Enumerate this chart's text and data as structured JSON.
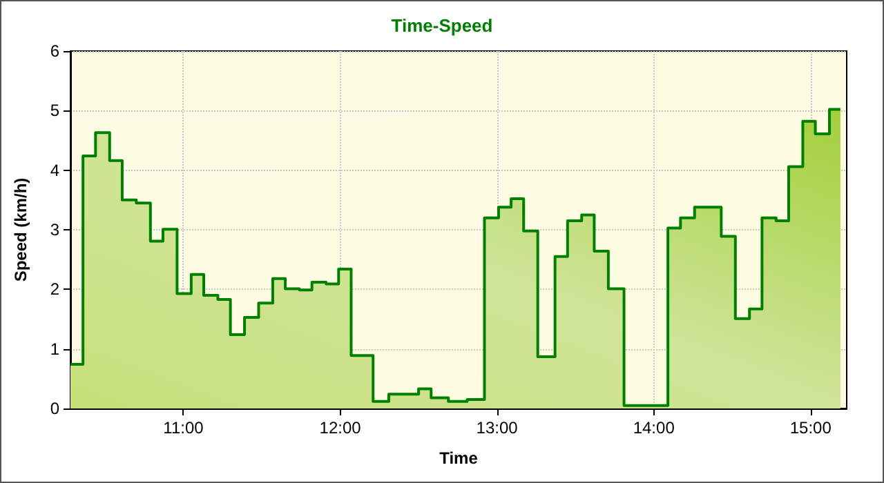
{
  "chart_data": {
    "type": "area",
    "title": "Time-Speed",
    "xlabel": "Time",
    "ylabel": "Speed (km/h)",
    "x": [
      10.28,
      10.36,
      10.36,
      10.44,
      10.44,
      10.53,
      10.53,
      10.61,
      10.61,
      10.7,
      10.7,
      10.79,
      10.79,
      10.87,
      10.87,
      10.96,
      10.96,
      11.05,
      11.05,
      11.13,
      11.13,
      11.22,
      11.22,
      11.3,
      11.3,
      11.39,
      11.39,
      11.48,
      11.48,
      11.57,
      11.57,
      11.65,
      11.65,
      11.74,
      11.74,
      11.82,
      11.82,
      11.91,
      11.91,
      11.99,
      11.99,
      12.07,
      12.07,
      12.21,
      12.21,
      12.31,
      12.31,
      12.5,
      12.5,
      12.58,
      12.58,
      12.69,
      12.69,
      12.81,
      12.81,
      12.92,
      12.92,
      13.01,
      13.01,
      13.09,
      13.09,
      13.17,
      13.17,
      13.26,
      13.26,
      13.37,
      13.37,
      13.45,
      13.45,
      13.54,
      13.54,
      13.62,
      13.62,
      13.71,
      13.71,
      13.81,
      13.81,
      14.09,
      14.09,
      14.17,
      14.17,
      14.26,
      14.26,
      14.43,
      14.43,
      14.52,
      14.52,
      14.61,
      14.61,
      14.69,
      14.69,
      14.78,
      14.78,
      14.86,
      14.86,
      14.95,
      14.95,
      15.03,
      15.03,
      15.12,
      15.12,
      15.19
    ],
    "series": [
      {
        "color": "#008000",
        "values": [
          0.74,
          0.74,
          4.24,
          4.24,
          4.63,
          4.63,
          4.16,
          4.16,
          3.5,
          3.5,
          3.45,
          3.45,
          2.81,
          2.81,
          3.01,
          3.01,
          1.93,
          1.93,
          2.25,
          2.25,
          1.9,
          1.9,
          1.83,
          1.83,
          1.24,
          1.24,
          1.53,
          1.53,
          1.77,
          1.77,
          2.18,
          2.18,
          2.01,
          2.01,
          1.99,
          1.99,
          2.12,
          2.12,
          2.09,
          2.09,
          2.34,
          2.34,
          0.89,
          0.89,
          0.12,
          0.12,
          0.24,
          0.24,
          0.33,
          0.33,
          0.18,
          0.18,
          0.12,
          0.12,
          0.15,
          0.15,
          3.2,
          3.2,
          3.38,
          3.38,
          3.52,
          3.52,
          2.98,
          2.98,
          0.87,
          0.87,
          2.55,
          2.55,
          3.15,
          3.15,
          3.25,
          3.25,
          2.64,
          2.64,
          2.01,
          2.01,
          0.05,
          0.05,
          3.03,
          3.03,
          3.2,
          3.2,
          3.38,
          3.38,
          2.89,
          2.89,
          1.51,
          1.51,
          1.67,
          1.67,
          3.2,
          3.2,
          3.15,
          3.15,
          4.06,
          4.06,
          4.82,
          4.82,
          4.61,
          4.61,
          5.02,
          5.02
        ]
      }
    ],
    "xlim": [
      10.28,
      15.23
    ],
    "xticks": [
      {
        "value": 11,
        "label": "11:00"
      },
      {
        "value": 12,
        "label": "12:00"
      },
      {
        "value": 13,
        "label": "13:00"
      },
      {
        "value": 14,
        "label": "14:00"
      },
      {
        "value": 15,
        "label": "15:00"
      }
    ],
    "ylim": [
      0,
      6
    ],
    "yticks": [
      0,
      1,
      2,
      3,
      4,
      5,
      6
    ],
    "grid": true
  }
}
